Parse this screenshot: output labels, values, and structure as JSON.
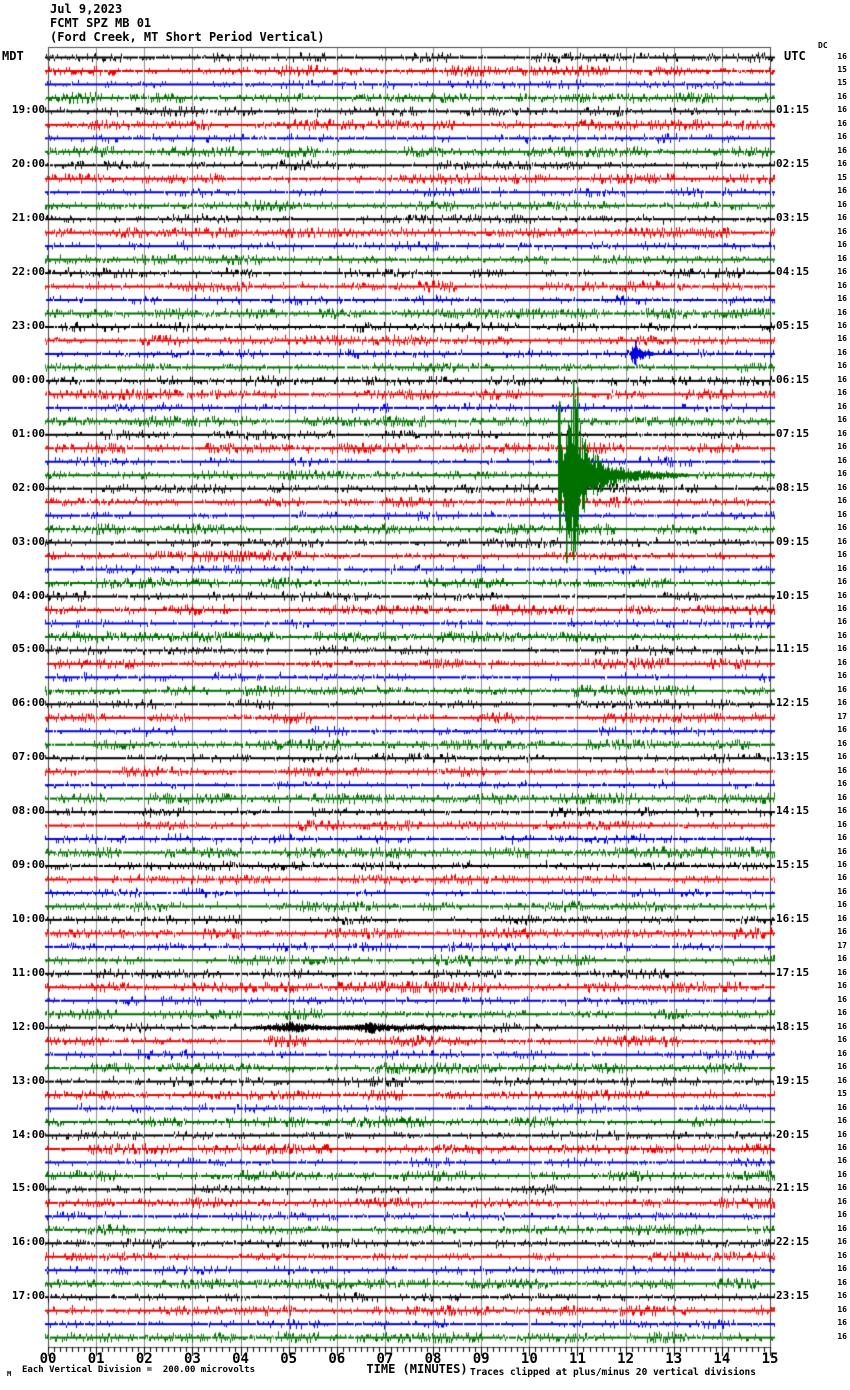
{
  "header": {
    "date": "Jul 9,2023",
    "station": "FCMT SPZ MB 01",
    "description": "(Ford Creek, MT Short Period Vertical)"
  },
  "axes": {
    "left_label": "MDT",
    "right_label": "UTC",
    "dc_label": "DC",
    "x_title": "TIME (MINUTES)",
    "x_ticks": [
      "00",
      "01",
      "02",
      "03",
      "04",
      "05",
      "06",
      "07",
      "08",
      "09",
      "10",
      "11",
      "12",
      "13",
      "14",
      "15"
    ]
  },
  "footer": {
    "scale_note_mark": "M",
    "scale_note": "Each Vertical Division =  200.00 microvolts",
    "clip_note": "Traces clipped at plus/minus 20 vertical divisions"
  },
  "chart_data": {
    "type": "line",
    "kind": "helicorder-seismogram",
    "title": "FCMT SPZ MB 01 (Ford Creek, MT Short Period Vertical) Jul 9,2023",
    "xlabel": "TIME (MINUTES)",
    "x_range_minutes": [
      0,
      15
    ],
    "minutes_per_row": 15,
    "rows": 96,
    "first_row_start_mdt": "18:00",
    "row_color_cycle": [
      "#000000",
      "#ee0000",
      "#0000dd",
      "#007000"
    ],
    "grid": {
      "vertical_lines_every_minute": true,
      "color": "#909090"
    },
    "label_row_start": 4,
    "label_row_step": 4,
    "left_hour_labels": [
      "19:00",
      "20:00",
      "21:00",
      "22:00",
      "23:00",
      "00:00",
      "01:00",
      "02:00",
      "03:00",
      "04:00",
      "05:00",
      "06:00",
      "07:00",
      "08:00",
      "09:00",
      "10:00",
      "11:00",
      "12:00",
      "13:00",
      "14:00",
      "15:00",
      "16:00",
      "17:00"
    ],
    "right_utc_labels": [
      "01:15",
      "02:15",
      "03:15",
      "04:15",
      "05:15",
      "06:15",
      "07:15",
      "08:15",
      "09:15",
      "10:15",
      "11:15",
      "12:15",
      "13:15",
      "14:15",
      "15:15",
      "16:15",
      "17:15",
      "18:15",
      "19:15",
      "20:15",
      "21:15",
      "22:15",
      "23:15"
    ],
    "dc_values": [
      16,
      15,
      15,
      16,
      16,
      16,
      16,
      16,
      16,
      15,
      16,
      16,
      16,
      16,
      16,
      16,
      16,
      16,
      16,
      16,
      16,
      16,
      16,
      16,
      16,
      16,
      16,
      16,
      16,
      16,
      16,
      16,
      16,
      16,
      16,
      16,
      16,
      16,
      16,
      16,
      16,
      16,
      16,
      16,
      16,
      16,
      16,
      16,
      16,
      17,
      16,
      16,
      16,
      16,
      16,
      16,
      16,
      16,
      16,
      16,
      16,
      16,
      16,
      16,
      16,
      16,
      17,
      16,
      16,
      16,
      16,
      16,
      16,
      16,
      16,
      16,
      16,
      15,
      16,
      16,
      16,
      16,
      16,
      16,
      16,
      16,
      16,
      16,
      16,
      16,
      16,
      16,
      16,
      16,
      16,
      16
    ],
    "events": [
      {
        "name": "large-earthquake-clipped",
        "row": 31,
        "trace_color": "green",
        "row_start_mdt": "01:45",
        "start_minute": 10.6,
        "end_minute": 13.3,
        "approx_time_mdt": "01:56",
        "approx_time_utc": "07:56",
        "clipped": true,
        "envelope": [
          [
            0,
            70
          ],
          [
            0.1,
            32
          ],
          [
            0.28,
            95
          ],
          [
            0.45,
            60
          ],
          [
            0.62,
            30
          ],
          [
            0.95,
            15
          ],
          [
            1.4,
            8
          ],
          [
            2.0,
            4
          ],
          [
            2.7,
            2
          ]
        ],
        "spikes": [
          [
            0.02,
            -74,
            50
          ],
          [
            0.16,
            -40,
            88
          ],
          [
            0.3,
            -95,
            85
          ],
          [
            0.4,
            -88,
            70
          ]
        ]
      },
      {
        "name": "small-blue-event",
        "row": 22,
        "trace_color": "blue",
        "row_start_mdt": "23:30",
        "start_minute": 12.1,
        "end_minute": 12.6,
        "approx_time_mdt": "23:42",
        "approx_time_utc": "05:42",
        "envelope": [
          [
            0,
            3
          ],
          [
            0.08,
            14
          ],
          [
            0.18,
            7
          ],
          [
            0.32,
            4
          ],
          [
            0.5,
            1.5
          ]
        ],
        "spikes": [
          [
            0.1,
            -13,
            11
          ]
        ]
      },
      {
        "name": "minor-black-disturbance",
        "row": 72,
        "trace_color": "black",
        "row_start_mdt": "12:00",
        "start_minute": 4.0,
        "end_minute": 8.8,
        "approx_time_mdt": "12:05",
        "approx_time_utc": "18:05",
        "envelope": [
          [
            0,
            1.5
          ],
          [
            0.5,
            2.5
          ],
          [
            0.97,
            5
          ],
          [
            1.05,
            8
          ],
          [
            1.15,
            5
          ],
          [
            1.5,
            3
          ],
          [
            2.3,
            2.5
          ],
          [
            2.66,
            6
          ],
          [
            2.75,
            7
          ],
          [
            2.9,
            4
          ],
          [
            3.3,
            3
          ],
          [
            4.0,
            2.5
          ],
          [
            4.8,
            1.5
          ]
        ],
        "spikes": []
      }
    ]
  }
}
